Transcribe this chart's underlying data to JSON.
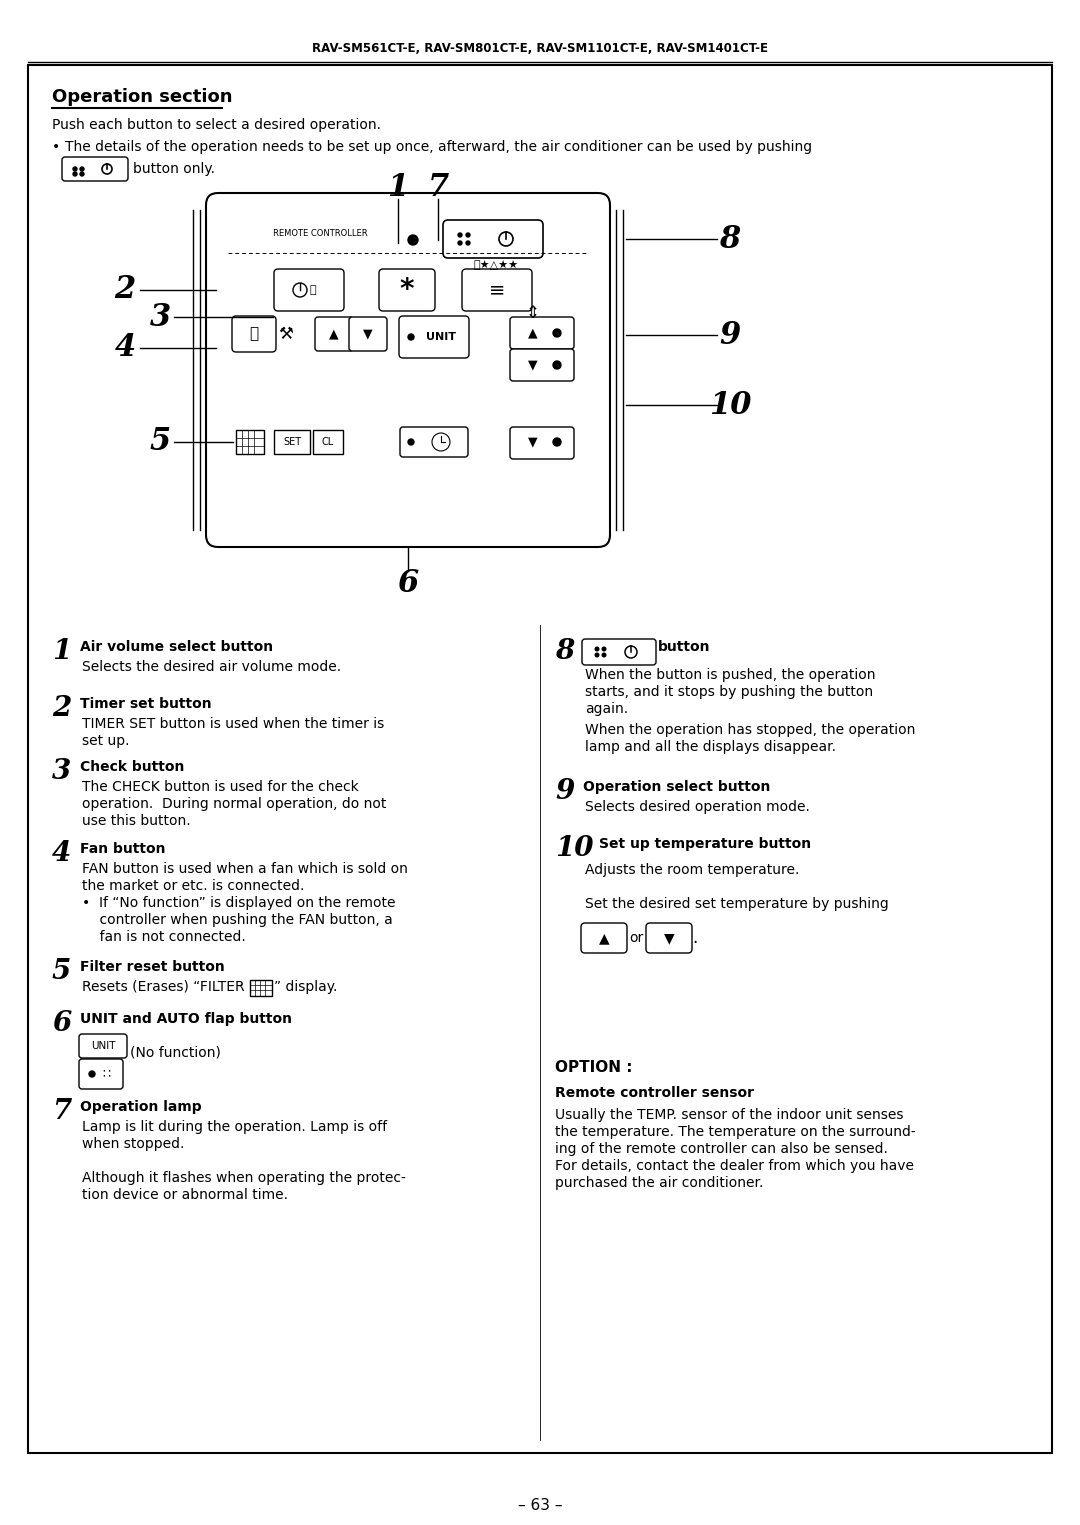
{
  "title_header": "RAV-SM561CT-E, RAV-SM801CT-E, RAV-SM1101CT-E, RAV-SM1401CT-E",
  "section_title": "Operation section",
  "intro_line1": "Push each button to select a desired operation.",
  "bullet_text": "The details of the operation needs to be set up once, afterward, the air conditioner can be used by pushing",
  "bullet_text2": "button only.",
  "footer": "– 63 –",
  "bg_color": "#ffffff",
  "text_color": "#000000",
  "items_left": [
    {
      "num": "1",
      "title": "Air volume select button",
      "body": [
        "Selects the desired air volume mode."
      ]
    },
    {
      "num": "2",
      "title": "Timer set button",
      "body": [
        "TIMER SET button is used when the timer is",
        "set up."
      ]
    },
    {
      "num": "3",
      "title": "Check button",
      "body": [
        "The CHECK button is used for the check",
        "operation.  During normal operation, do not",
        "use this button."
      ]
    },
    {
      "num": "4",
      "title": "Fan button",
      "body": [
        "FAN button is used when a fan which is sold on",
        "the market or etc. is connected.",
        "•  If “No function” is displayed on the remote",
        "    controller when pushing the FAN button, a",
        "    fan is not connected."
      ]
    },
    {
      "num": "5",
      "title": "Filter reset button",
      "body": [
        "filter_line"
      ]
    },
    {
      "num": "6",
      "title": "UNIT and AUTO flap button",
      "body": [
        "unit_line",
        "flap_line"
      ]
    },
    {
      "num": "7",
      "title": "Operation lamp",
      "body": [
        "Lamp is lit during the operation. Lamp is off",
        "when stopped.",
        "",
        "Although it flashes when operating the protec-",
        "tion device or abnormal time."
      ]
    }
  ],
  "items_right": [
    {
      "num": "8",
      "title": "button",
      "has_icon": true,
      "body": [
        "When the button is pushed, the operation",
        "starts, and it stops by pushing the button",
        "again.",
        "",
        "When the operation has stopped, the operation",
        "lamp and all the displays disappear."
      ]
    },
    {
      "num": "9",
      "title": "Operation select button",
      "has_icon": false,
      "body": [
        "Selects desired operation mode."
      ]
    },
    {
      "num": "10",
      "title": "Set up temperature button",
      "has_icon": false,
      "body": [
        "Adjusts the room temperature.",
        "",
        "Set the desired set temperature by pushing",
        "arrow_line"
      ]
    }
  ],
  "option_title": "OPTION :",
  "option_subtitle": "Remote controller sensor",
  "option_body": [
    "Usually the TEMP. sensor of the indoor unit senses",
    "the temperature. The temperature on the surround-",
    "ing of the remote controller can also be sensed.",
    "For details, contact the dealer from which you have",
    "purchased the air conditioner."
  ]
}
